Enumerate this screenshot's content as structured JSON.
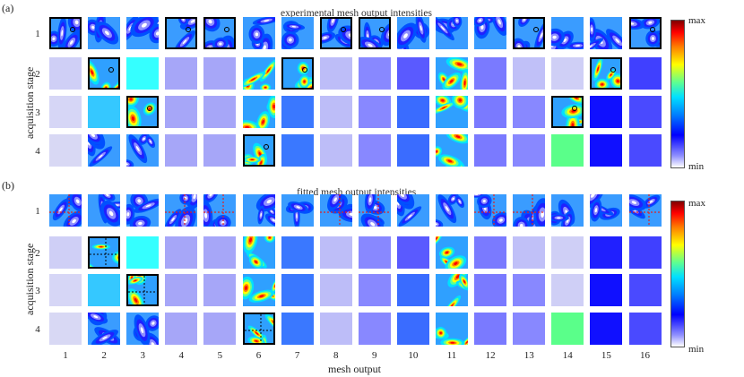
{
  "panels": [
    {
      "label": "(a)",
      "title": "experimental mesh output intensities",
      "cbar_max": "max",
      "cbar_min": "min",
      "highlighted": [
        [
          0,
          0
        ],
        [
          0,
          3
        ],
        [
          0,
          4
        ],
        [
          0,
          7
        ],
        [
          0,
          8
        ],
        [
          0,
          12
        ],
        [
          0,
          15
        ],
        [
          1,
          1
        ],
        [
          1,
          6
        ],
        [
          1,
          14
        ],
        [
          2,
          2
        ],
        [
          2,
          13
        ],
        [
          3,
          5
        ]
      ]
    },
    {
      "label": "(b)",
      "title": "fitted mesh output intensities",
      "cbar_max": "max",
      "cbar_min": "min",
      "highlighted": [
        [
          1,
          1
        ],
        [
          2,
          2
        ],
        [
          3,
          5
        ]
      ]
    }
  ],
  "row_labels": [
    "1",
    "2",
    "3",
    "4"
  ],
  "col_labels": [
    "1",
    "2",
    "3",
    "4",
    "5",
    "6",
    "7",
    "8",
    "9",
    "10",
    "11",
    "12",
    "13",
    "14",
    "15",
    "16"
  ],
  "ylabel": "acquisition stage",
  "xlabel": "mesh output",
  "colormap": [
    "#ffffff",
    "#8f8fff",
    "#0000ff",
    "#0080ff",
    "#00e0ff",
    "#60ff90",
    "#ffff00",
    "#ff8000",
    "#ff0000",
    "#800000"
  ],
  "uniform_tiles": {
    "1": [
      "#d8d8f4",
      "#cfcff6",
      "#d6d6f6",
      "#d8d8f4"
    ],
    "2": [
      "#cfcff6",
      "#35c8ff",
      "#35c8ff"
    ],
    "3": [
      "#cfcff6",
      "#35ffff"
    ],
    "4": [
      "#cfcff6",
      "#a6a6f8",
      "#a6a6f8",
      "#a6a6f8"
    ],
    "5": [
      "#cfcff6",
      "#a6a6f8",
      "#a6a6f8",
      "#a6a6f8"
    ],
    "6": [],
    "7": [
      "#cfcff6",
      "#3a78ff",
      "#3a78ff",
      "#3a78ff"
    ],
    "8": [
      "#cfcff6",
      "#bdbdf8",
      "#bdbdf8",
      "#bdbdf8"
    ],
    "9": [
      "#cfcff6",
      "#8888ff",
      "#8888ff",
      "#8888ff"
    ],
    "10": [
      "#cfcff6",
      "#5a5aff",
      "#3a6cff",
      "#3a6cff"
    ],
    "12": [
      "#cfcff6",
      "#7a7aff",
      "#7a7aff",
      "#7a7aff"
    ],
    "13": [
      "#cfcff6",
      "#c0c0f8",
      "#8888ff",
      "#8888ff"
    ],
    "14": [
      "#cfcff6",
      "#cfcff6",
      "#cfcff6",
      "#5aff8a"
    ],
    "15": [
      "#cfcff6",
      "#2020ff",
      "#1010ff",
      "#1010ff"
    ],
    "16": [
      "#cfcff6",
      "#4040ff",
      "#4a4aff",
      "#4a4aff"
    ]
  }
}
